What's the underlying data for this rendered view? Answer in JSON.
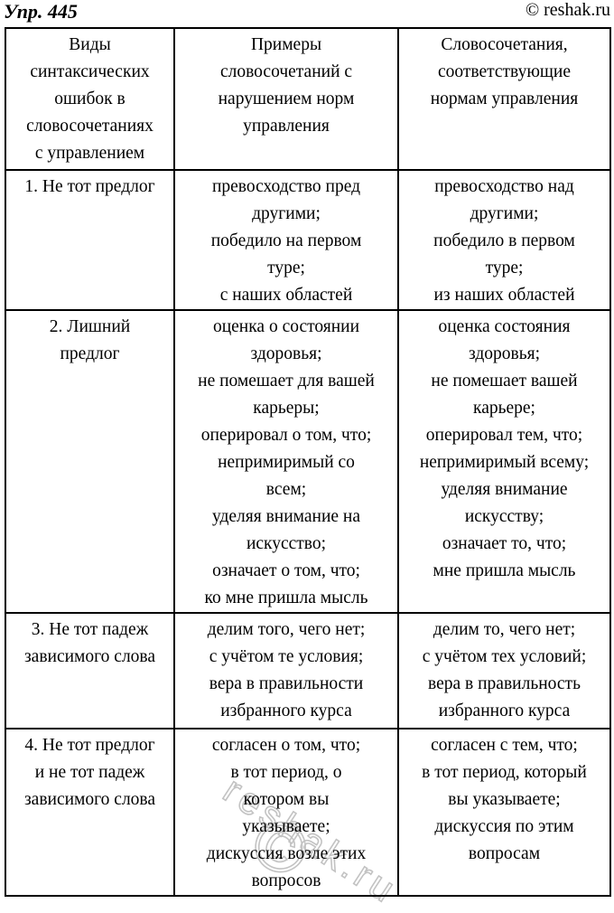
{
  "page": {
    "title": "Упр. 445",
    "copyright": "© reshak.ru",
    "watermark": {
      "text": "reshak.ru",
      "symbol": "©",
      "outline_color": "#c3c3c3"
    },
    "colors": {
      "text": "#000000",
      "border": "#000000",
      "background": "#ffffff"
    }
  },
  "table": {
    "header": {
      "col1": [
        "Виды",
        "синтаксических",
        "ошибок в",
        "словосочетаниях",
        "с управлением"
      ],
      "col2": [
        "Примеры",
        "словосочетаний с",
        "нарушением норм",
        "управления"
      ],
      "col3": [
        "Словосочетания,",
        "соответствующие",
        "нормам управления"
      ]
    },
    "rows": [
      {
        "type": [
          "1. Не тот предлог"
        ],
        "wrong": [
          "превосходство пред",
          "другими;",
          "победило на первом",
          "туре;",
          "с наших областей"
        ],
        "correct": [
          "превосходство над",
          "другими;",
          "победило в первом",
          "туре;",
          "из наших областей"
        ]
      },
      {
        "type": [
          "2. Лишний",
          "предлог"
        ],
        "wrong": [
          "оценка о состоянии",
          "здоровья;",
          "не помешает для вашей",
          "карьеры;",
          "оперировал о том, что;",
          "непримиримый со",
          "всем;",
          "уделяя внимание на",
          "искусство;",
          "означает о том, что;",
          "ко мне пришла мысль"
        ],
        "correct": [
          "оценка состояния",
          "здоровья;",
          "не помешает вашей",
          "карьере;",
          "оперировал тем, что;",
          "непримиримый всему;",
          "уделяя внимание",
          "искусству;",
          "означает то, что;",
          "мне пришла мысль"
        ]
      },
      {
        "type": [
          "3. Не тот падеж",
          "зависимого слова"
        ],
        "wrong": [
          "делим того, чего нет;",
          "с учётом те условия;",
          "вера в правильности",
          "избранного курса"
        ],
        "correct": [
          "делим то, чего нет;",
          "с учётом тех условий;",
          "вера в правильность",
          "избранного курса"
        ]
      },
      {
        "type": [
          "4. Не тот предлог",
          "и не тот падеж",
          "зависимого слова"
        ],
        "wrong": [
          "согласен о том, что;",
          "в тот период, о",
          "котором вы",
          "указываете;",
          "дискуссия возле этих",
          "вопросов"
        ],
        "correct": [
          "согласен с тем, что;",
          "в тот период, который",
          "вы указываете;",
          "дискуссия по этим",
          "вопросам"
        ]
      }
    ]
  }
}
